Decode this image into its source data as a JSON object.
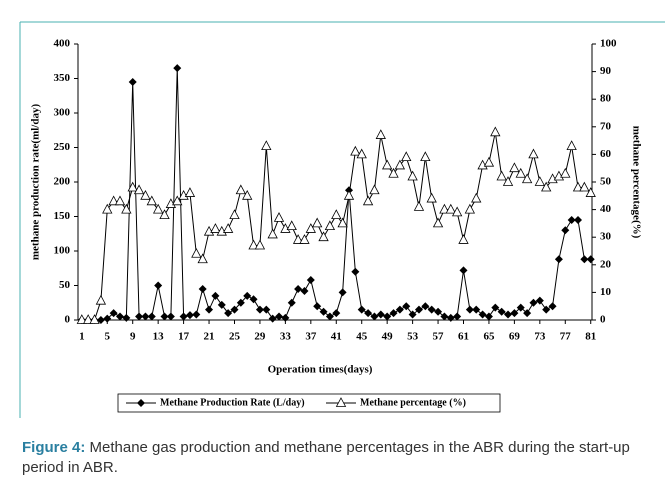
{
  "chart_data": {
    "type": "line",
    "xlabel": "Operation times(days)",
    "ylabel": "methane production rate(ml/day)",
    "y2label": "methane percentage(%)",
    "x": [
      1,
      2,
      3,
      4,
      5,
      6,
      7,
      8,
      9,
      10,
      11,
      12,
      13,
      14,
      15,
      16,
      17,
      18,
      19,
      20,
      21,
      22,
      23,
      24,
      25,
      26,
      27,
      28,
      29,
      30,
      31,
      32,
      33,
      34,
      35,
      36,
      37,
      38,
      39,
      40,
      41,
      42,
      43,
      44,
      45,
      46,
      47,
      48,
      49,
      50,
      51,
      52,
      53,
      54,
      55,
      56,
      57,
      58,
      59,
      60,
      61,
      62,
      63,
      64,
      65,
      66,
      67,
      68,
      69,
      70,
      71,
      72,
      73,
      74,
      75,
      76,
      77,
      78,
      79,
      80,
      81
    ],
    "xlim": [
      0.4,
      81.2
    ],
    "xticks": [
      1,
      5,
      9,
      13,
      17,
      21,
      25,
      29,
      33,
      37,
      41,
      45,
      49,
      53,
      57,
      61,
      65,
      69,
      73,
      77,
      81
    ],
    "ylim": [
      0,
      400
    ],
    "yticks": [
      0,
      50,
      100,
      150,
      200,
      250,
      300,
      350,
      400
    ],
    "y2lim": [
      0,
      100
    ],
    "y2ticks": [
      0,
      10,
      20,
      30,
      40,
      50,
      60,
      70,
      80,
      90,
      100
    ],
    "series": [
      {
        "name": "Methane Production Rate (L/day)",
        "color": "#000000",
        "marker": "diamond",
        "values": [
          0,
          0,
          0,
          0,
          2,
          10,
          5,
          3,
          345,
          5,
          5,
          5,
          50,
          5,
          5,
          365,
          5,
          7,
          8,
          45,
          15,
          35,
          22,
          10,
          15,
          25,
          35,
          30,
          15,
          15,
          2,
          5,
          3,
          25,
          45,
          42,
          58,
          20,
          12,
          5,
          10,
          40,
          188,
          70,
          15,
          10,
          5,
          8,
          5,
          10,
          15,
          20,
          8,
          15,
          20,
          15,
          12,
          5,
          3,
          5,
          72,
          15,
          15,
          8,
          5,
          18,
          12,
          8,
          10,
          18,
          10,
          25,
          28,
          15,
          20,
          88,
          130,
          145,
          145,
          88,
          88
        ]
      },
      {
        "name": "Methane percentage (%)",
        "color": "#000000",
        "marker": "triangle",
        "axis": "y2",
        "values": [
          0,
          0,
          0,
          7,
          40,
          43,
          43,
          40,
          48,
          47,
          45,
          43,
          40,
          38,
          42,
          43,
          45,
          46,
          24,
          22,
          32,
          33,
          32,
          33,
          38,
          47,
          45,
          27,
          27,
          63,
          31,
          37,
          33,
          34,
          29,
          29,
          33,
          35,
          30,
          34,
          38,
          35,
          45,
          61,
          60,
          43,
          47,
          67,
          56,
          53,
          56,
          59,
          52,
          41,
          59,
          44,
          35,
          40,
          40,
          39,
          29,
          40,
          44,
          56,
          57,
          68,
          52,
          50,
          55,
          53,
          51,
          60,
          50,
          48,
          51,
          52,
          53,
          63,
          48,
          48,
          46
        ]
      }
    ]
  },
  "caption": {
    "label": "Figure 4:",
    "text": "Methane gas production and methane percentages in the ABR during the start-up period in ABR."
  }
}
